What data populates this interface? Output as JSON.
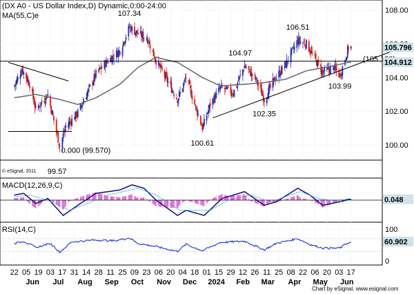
{
  "header": {
    "title": "(DX A0 - US Dollar Index,D) Dynamic,0:00-24:00",
    "ma_label": "MA(55,C)e"
  },
  "colors": {
    "background": "#ffffff",
    "grid": "#d8d8d8",
    "candle_up": "#1f2fb0",
    "candle_down": "#cc1f1f",
    "ma_line": "#6e6e6e",
    "badge_bg": "#cfe3ea",
    "macd_line": "#0a0a8a",
    "signal_line": "#3a9fd8",
    "histogram": "#e060d0",
    "rsi_line": "#1a2fd8",
    "trendline": "#000000"
  },
  "chart_data": [
    {
      "type": "candlestick",
      "title": "(DX A0 - US Dollar Index,D) Dynamic,0:00-24:00",
      "ylim": [
        99.1,
        108.6
      ],
      "y_ticks": [
        100.0,
        102.0,
        104.0,
        106.0,
        108.0
      ],
      "x_ticks": {
        "days": [
          "22",
          "05",
          "19",
          "03",
          "17",
          "31",
          "14",
          "28",
          "11",
          "25",
          "09",
          "23",
          "06",
          "20",
          "04",
          "18",
          "01",
          "15",
          "29",
          "12",
          "26",
          "11",
          "25",
          "08",
          "22",
          "06",
          "20",
          "03",
          "17"
        ],
        "months": [
          "Jun",
          "Jul",
          "Aug",
          "Sep",
          "Oct",
          "Nov",
          "Dec",
          "2024",
          "Feb",
          "Mar",
          "Apr",
          "May",
          "Jun"
        ]
      },
      "keypoints": [
        {
          "date": "2023-05-22",
          "close": 103.5
        },
        {
          "date": "2023-05-31",
          "close": 104.5
        },
        {
          "date": "2023-06-09",
          "close": 103.6
        },
        {
          "date": "2023-06-16",
          "close": 102.1
        },
        {
          "date": "2023-06-30",
          "close": 103.0
        },
        {
          "date": "2023-07-14",
          "close": 99.9
        },
        {
          "date": "2023-07-21",
          "close": 101.1
        },
        {
          "date": "2023-08-04",
          "close": 101.9
        },
        {
          "date": "2023-08-25",
          "close": 104.2
        },
        {
          "date": "2023-09-08",
          "close": 105.0
        },
        {
          "date": "2023-09-22",
          "close": 105.6
        },
        {
          "date": "2023-10-03",
          "close": 107.0
        },
        {
          "date": "2023-10-13",
          "close": 106.6
        },
        {
          "date": "2023-10-24",
          "close": 106.3
        },
        {
          "date": "2023-11-03",
          "close": 105.0
        },
        {
          "date": "2023-11-14",
          "close": 104.0
        },
        {
          "date": "2023-11-28",
          "close": 102.7
        },
        {
          "date": "2023-12-08",
          "close": 104.0
        },
        {
          "date": "2023-12-27",
          "close": 101.0
        },
        {
          "date": "2024-01-05",
          "close": 102.4
        },
        {
          "date": "2024-01-17",
          "close": 103.4
        },
        {
          "date": "2024-02-01",
          "close": 103.1
        },
        {
          "date": "2024-02-14",
          "close": 104.7
        },
        {
          "date": "2024-02-27",
          "close": 103.9
        },
        {
          "date": "2024-03-08",
          "close": 102.7
        },
        {
          "date": "2024-03-19",
          "close": 103.8
        },
        {
          "date": "2024-04-02",
          "close": 104.8
        },
        {
          "date": "2024-04-16",
          "close": 106.2
        },
        {
          "date": "2024-04-26",
          "close": 106.0
        },
        {
          "date": "2024-05-06",
          "close": 105.1
        },
        {
          "date": "2024-05-15",
          "close": 104.3
        },
        {
          "date": "2024-05-28",
          "close": 104.6
        },
        {
          "date": "2024-06-04",
          "close": 104.1
        },
        {
          "date": "2024-06-10",
          "close": 105.1
        },
        {
          "date": "2024-06-14",
          "close": 105.8
        }
      ],
      "ma_keypoints": [
        {
          "date": "2023-05-22",
          "value": 102.8
        },
        {
          "date": "2023-06-16",
          "value": 103.0
        },
        {
          "date": "2023-07-14",
          "value": 102.7
        },
        {
          "date": "2023-08-04",
          "value": 102.4
        },
        {
          "date": "2023-08-25",
          "value": 102.8
        },
        {
          "date": "2023-09-22",
          "value": 103.6
        },
        {
          "date": "2023-10-13",
          "value": 104.6
        },
        {
          "date": "2023-11-03",
          "value": 105.2
        },
        {
          "date": "2023-11-28",
          "value": 104.9
        },
        {
          "date": "2023-12-27",
          "value": 104.0
        },
        {
          "date": "2024-01-17",
          "value": 103.5
        },
        {
          "date": "2024-02-14",
          "value": 103.6
        },
        {
          "date": "2024-03-08",
          "value": 103.7
        },
        {
          "date": "2024-04-02",
          "value": 103.9
        },
        {
          "date": "2024-04-26",
          "value": 104.4
        },
        {
          "date": "2024-05-28",
          "value": 104.7
        },
        {
          "date": "2024-06-14",
          "value": 104.9
        }
      ],
      "horizontal_line": {
        "value": 104.97
      },
      "trendlines": [
        {
          "from": {
            "date": "2023-05-15",
            "value": 104.9
          },
          "to": {
            "date": "2023-06-22",
            "value": 104.3
          }
        },
        {
          "from": {
            "date": "2023-05-15",
            "value": 100.8
          },
          "to": {
            "date": "2023-06-26",
            "value": 100.8
          }
        },
        {
          "from": {
            "date": "2024-01-08",
            "value": 101.6
          },
          "to": {
            "date": "2024-06-30",
            "value": 104.9
          }
        }
      ],
      "annotations": [
        {
          "text": "107.34",
          "date": "2023-10-03",
          "value": 107.34,
          "position": "above"
        },
        {
          "text": "106.51",
          "date": "2024-04-16",
          "value": 106.51,
          "position": "above"
        },
        {
          "text": "104.97",
          "date": "2024-02-09",
          "value": 104.97,
          "position": "above"
        },
        {
          "text": "(105.120)",
          "date": "2024-06-26",
          "value": 105.12,
          "position": "right"
        },
        {
          "text": "103.99",
          "date": "2024-06-04",
          "value": 103.99,
          "position": "below"
        },
        {
          "text": "102.35",
          "date": "2024-03-08",
          "value": 102.35,
          "position": "below"
        },
        {
          "text": "100.61",
          "date": "2023-12-27",
          "value": 100.61,
          "position": "below"
        },
        {
          "text": "0.000 (99.570)",
          "date": "2023-07-14",
          "value": 99.57,
          "position": "right"
        },
        {
          "text": "99.57",
          "date": "2023-07-14",
          "value": 99.57,
          "position": "below-pane"
        }
      ],
      "price_badges": [
        {
          "text": "105.796",
          "value": 105.796
        },
        {
          "text": "104.912",
          "value": 104.912
        }
      ],
      "footnote": "© eSignal, 2011"
    },
    {
      "type": "line",
      "title": "MACD(12,26,9,C)",
      "ylim": [
        -1.3,
        1.3
      ],
      "series": [
        {
          "name": "MACD",
          "keypoints": [
            {
              "date": "2023-05-22",
              "value": 0.3
            },
            {
              "date": "2023-06-02",
              "value": 0.4
            },
            {
              "date": "2023-06-16",
              "value": -0.2
            },
            {
              "date": "2023-06-30",
              "value": 0.1
            },
            {
              "date": "2023-07-18",
              "value": -0.9
            },
            {
              "date": "2023-08-04",
              "value": -0.3
            },
            {
              "date": "2023-08-25",
              "value": 0.4
            },
            {
              "date": "2023-09-22",
              "value": 0.6
            },
            {
              "date": "2023-10-06",
              "value": 0.9
            },
            {
              "date": "2023-10-20",
              "value": 0.7
            },
            {
              "date": "2023-11-03",
              "value": 0.0
            },
            {
              "date": "2023-11-28",
              "value": -0.9
            },
            {
              "date": "2023-12-08",
              "value": -0.6
            },
            {
              "date": "2023-12-29",
              "value": -0.9
            },
            {
              "date": "2024-01-19",
              "value": 0.1
            },
            {
              "date": "2024-02-14",
              "value": 0.5
            },
            {
              "date": "2024-03-08",
              "value": -0.3
            },
            {
              "date": "2024-03-22",
              "value": -0.1
            },
            {
              "date": "2024-04-16",
              "value": 0.7
            },
            {
              "date": "2024-04-30",
              "value": 0.3
            },
            {
              "date": "2024-05-15",
              "value": -0.3
            },
            {
              "date": "2024-06-04",
              "value": -0.1
            },
            {
              "date": "2024-06-14",
              "value": 0.05
            }
          ]
        },
        {
          "name": "Signal",
          "keypoints": [
            {
              "date": "2023-05-22",
              "value": 0.2
            },
            {
              "date": "2023-06-09",
              "value": 0.3
            },
            {
              "date": "2023-06-30",
              "value": 0.0
            },
            {
              "date": "2023-07-25",
              "value": -0.6
            },
            {
              "date": "2023-08-15",
              "value": -0.2
            },
            {
              "date": "2023-09-08",
              "value": 0.3
            },
            {
              "date": "2023-10-13",
              "value": 0.7
            },
            {
              "date": "2023-11-03",
              "value": 0.3
            },
            {
              "date": "2023-12-01",
              "value": -0.6
            },
            {
              "date": "2024-01-05",
              "value": -0.6
            },
            {
              "date": "2024-01-26",
              "value": 0.0
            },
            {
              "date": "2024-02-21",
              "value": 0.3
            },
            {
              "date": "2024-03-15",
              "value": -0.1
            },
            {
              "date": "2024-04-19",
              "value": 0.5
            },
            {
              "date": "2024-05-10",
              "value": 0.1
            },
            {
              "date": "2024-06-07",
              "value": -0.1
            },
            {
              "date": "2024-06-14",
              "value": 0.0
            }
          ]
        }
      ],
      "histogram": true,
      "zero_line": 0,
      "badge": {
        "text": "0.048",
        "value": 0.048
      }
    },
    {
      "type": "line",
      "title": "RSI(14,C)",
      "ylim": [
        0,
        100
      ],
      "y_ticks": [
        0,
        100
      ],
      "series": [
        {
          "name": "RSI",
          "keypoints": [
            {
              "date": "2023-05-22",
              "value": 55
            },
            {
              "date": "2023-06-02",
              "value": 62
            },
            {
              "date": "2023-06-16",
              "value": 42
            },
            {
              "date": "2023-07-03",
              "value": 55
            },
            {
              "date": "2023-07-14",
              "value": 28
            },
            {
              "date": "2023-07-28",
              "value": 60
            },
            {
              "date": "2023-08-25",
              "value": 66
            },
            {
              "date": "2023-09-15",
              "value": 63
            },
            {
              "date": "2023-10-03",
              "value": 72
            },
            {
              "date": "2023-10-13",
              "value": 55
            },
            {
              "date": "2023-11-03",
              "value": 45
            },
            {
              "date": "2023-11-28",
              "value": 30
            },
            {
              "date": "2023-12-08",
              "value": 52
            },
            {
              "date": "2023-12-27",
              "value": 32
            },
            {
              "date": "2024-01-17",
              "value": 58
            },
            {
              "date": "2024-02-14",
              "value": 62
            },
            {
              "date": "2024-03-08",
              "value": 35
            },
            {
              "date": "2024-03-22",
              "value": 55
            },
            {
              "date": "2024-04-16",
              "value": 70
            },
            {
              "date": "2024-04-30",
              "value": 52
            },
            {
              "date": "2024-05-15",
              "value": 40
            },
            {
              "date": "2024-06-04",
              "value": 40
            },
            {
              "date": "2024-06-14",
              "value": 58
            }
          ]
        }
      ],
      "badge": {
        "text": "60.902",
        "value": 60.902
      }
    }
  ],
  "footer": {
    "text": "Chart by eSignal, www.esignal.com"
  }
}
